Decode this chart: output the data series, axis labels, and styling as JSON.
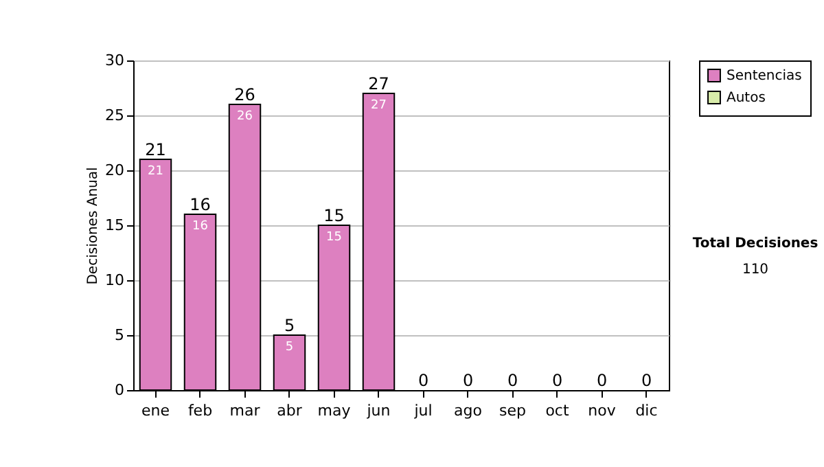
{
  "chart_data": {
    "type": "bar",
    "ylabel": "Decisiones Anual",
    "stacked": true,
    "categories": [
      "ene",
      "feb",
      "mar",
      "abr",
      "may",
      "jun",
      "jul",
      "ago",
      "sep",
      "oct",
      "nov",
      "dic"
    ],
    "series": [
      {
        "name": "Sentencias",
        "color": "#dd80c0",
        "values": [
          21,
          16,
          26,
          5,
          15,
          27,
          0,
          0,
          0,
          0,
          0,
          0
        ],
        "value_labels": [
          "21",
          "16",
          "26",
          "5",
          "15",
          "27",
          null,
          null,
          null,
          null,
          null,
          null
        ]
      },
      {
        "name": "Autos",
        "color": "#d8ecaa",
        "values": [
          0,
          0,
          0,
          0,
          0,
          0,
          0,
          0,
          0,
          0,
          0,
          0
        ]
      }
    ],
    "totals": [
      "21",
      "16",
      "26",
      "5",
      "15",
      "27",
      "0",
      "0",
      "0",
      "0",
      "0",
      "0"
    ],
    "ylim": [
      0,
      30
    ],
    "yticks": [
      0,
      5,
      10,
      15,
      20,
      25,
      30
    ],
    "grid": "y",
    "legend": "right",
    "annotations": [
      "Total Decisiones",
      "110"
    ]
  }
}
